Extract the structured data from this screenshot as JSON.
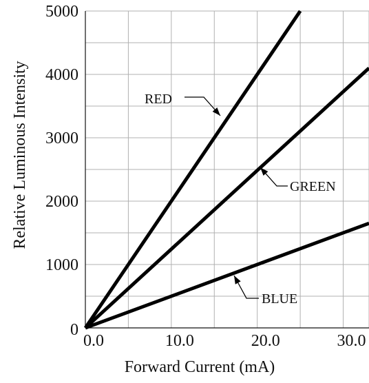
{
  "chart_data": {
    "type": "line",
    "xlabel": "Forward Current (mA)",
    "ylabel": "Relative Luminous Intensity",
    "xlim": [
      0,
      33
    ],
    "ylim": [
      0,
      5000
    ],
    "x_ticks": [
      "0.0",
      "10.0",
      "20.0",
      "30.0"
    ],
    "y_ticks": [
      "0",
      "1000",
      "2000",
      "3000",
      "4000",
      "5000"
    ],
    "grid": true,
    "series": [
      {
        "name": "RED",
        "x": [
          0,
          25
        ],
        "y": [
          0,
          5000
        ]
      },
      {
        "name": "GREEN",
        "x": [
          0,
          33
        ],
        "y": [
          0,
          4100
        ]
      },
      {
        "name": "BLUE",
        "x": [
          0,
          33
        ],
        "y": [
          0,
          1650
        ]
      }
    ],
    "colors": {
      "line": "#000000",
      "grid": "#b0b0b0",
      "axis": "#111111",
      "text": "#111111"
    }
  }
}
